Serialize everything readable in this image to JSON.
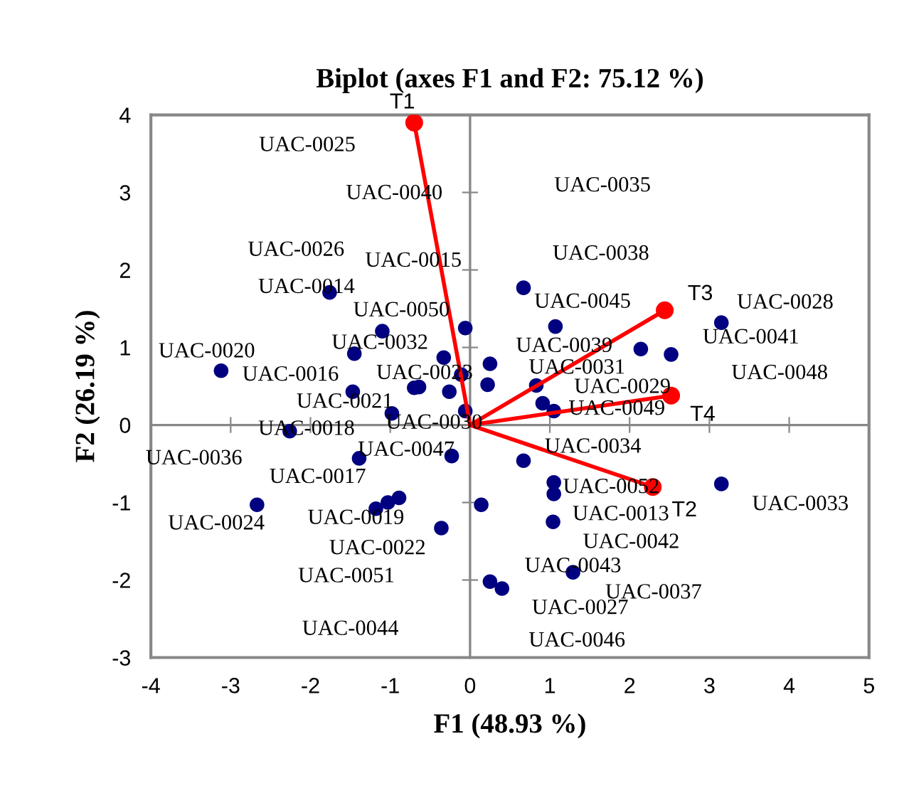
{
  "chart_data": {
    "type": "scatter",
    "title": "Biplot (axes F1 and F2: 75.12 %)",
    "xlabel": "F1 (48.93 %)",
    "ylabel": "F2 (26.19 %)",
    "xlim": [
      -4,
      5
    ],
    "ylim": [
      -3,
      4
    ],
    "xticks": [
      -4,
      -3,
      -2,
      -1,
      0,
      1,
      2,
      3,
      4,
      5
    ],
    "yticks": [
      -3,
      -2,
      -1,
      0,
      1,
      2,
      3,
      4
    ],
    "marker": "circle",
    "series": [
      {
        "color": "#000080",
        "x": [
          -1.76,
          -3.12,
          -1.1,
          -1.45,
          -0.06,
          -0.33,
          0.25,
          -0.11,
          -0.7,
          -0.64,
          -0.26,
          0.22,
          -1.47,
          -0.98,
          -0.06,
          -2.26,
          0.67,
          1.07,
          2.14,
          2.52,
          3.15,
          0.83,
          0.91,
          1.05,
          -1.39,
          -0.23,
          -2.67,
          -1.18,
          -1.03,
          -0.89,
          -0.36,
          0.14,
          0.25,
          0.67,
          1.05,
          1.05,
          1.04,
          3.15,
          0.4,
          1.29
        ],
        "values": [
          1.71,
          0.7,
          1.21,
          0.92,
          1.25,
          0.87,
          0.79,
          0.65,
          0.48,
          0.49,
          0.43,
          0.52,
          0.43,
          0.15,
          0.18,
          -0.08,
          1.77,
          1.27,
          0.98,
          0.91,
          1.32,
          0.51,
          0.28,
          0.18,
          -0.43,
          -0.4,
          -1.03,
          -1.08,
          -1.0,
          -0.94,
          -1.33,
          -1.03,
          -2.02,
          -0.46,
          -0.74,
          -0.89,
          -1.25,
          -0.76,
          -2.11,
          -1.9
        ]
      },
      {
        "type": "line",
        "name": "T1",
        "color": "#ff0000",
        "x": [
          0,
          -0.7
        ],
        "values": [
          0,
          3.9
        ]
      },
      {
        "type": "line",
        "name": "T2",
        "color": "#ff0000",
        "x": [
          0,
          2.29
        ],
        "values": [
          0,
          -0.8
        ]
      },
      {
        "type": "line",
        "name": "T3",
        "color": "#ff0000",
        "x": [
          0,
          2.44
        ],
        "values": [
          0,
          1.48
        ]
      },
      {
        "type": "line",
        "name": "T4",
        "color": "#ff0000",
        "x": [
          0,
          2.52
        ],
        "values": [
          0,
          0.38
        ]
      }
    ],
    "annotations": [
      "UAC-0025",
      "UAC-0040",
      "UAC-0035",
      "UAC-0026",
      "UAC-0015",
      "UAC-0038",
      "UAC-0014",
      "UAC-0050",
      "UAC-0045",
      "UAC-0028",
      "UAC-0020",
      "UAC-0032",
      "UAC-0039",
      "UAC-0041",
      "UAC-0016",
      "UAC-0023",
      "UAC-0031",
      "UAC-0029",
      "UAC-0048",
      "UAC-0021",
      "UAC-0049",
      "UAC-0030",
      "UAC-0018",
      "UAC-0036",
      "UAC-0047",
      "UAC-0034",
      "UAC-0017",
      "UAC-0052",
      "UAC-0033",
      "UAC-0024",
      "UAC-0019",
      "UAC-0013",
      "UAC-0022",
      "UAC-0042",
      "UAC-0043",
      "UAC-0051",
      "UAC-0037",
      "UAC-0027",
      "UAC-0044",
      "UAC-0046"
    ]
  }
}
